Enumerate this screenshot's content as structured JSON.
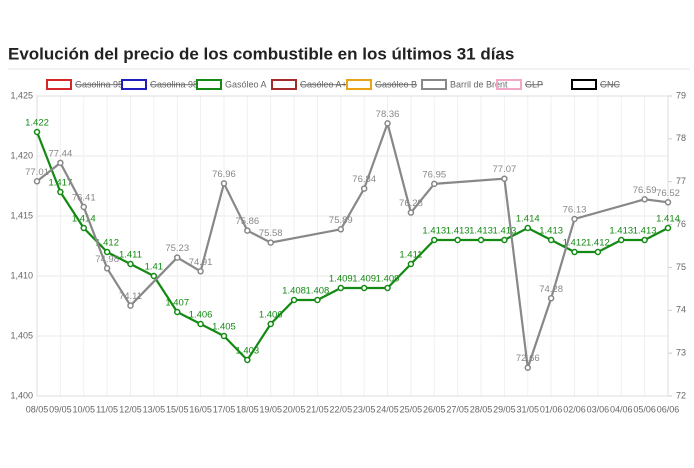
{
  "chart_data": {
    "type": "line",
    "title": "Evolución del precio de los combustible en los últimos 31 días",
    "categories": [
      "08/05",
      "09/05",
      "10/05",
      "11/05",
      "12/05",
      "13/05",
      "15/05",
      "16/05",
      "17/05",
      "18/05",
      "19/05",
      "20/05",
      "21/05",
      "22/05",
      "23/05",
      "24/05",
      "25/05",
      "26/05",
      "27/05",
      "28/05",
      "29/05",
      "31/05",
      "01/06",
      "02/06",
      "03/06",
      "04/06",
      "05/06",
      "06/06"
    ],
    "series": [
      {
        "name": "Gasolina 95",
        "color": "#d62728",
        "hidden": true
      },
      {
        "name": "Gasolina 98",
        "color": "#1f1fbf",
        "hidden": true
      },
      {
        "name": "Gasóleo A",
        "color": "#138a13",
        "values": [
          1.422,
          1.417,
          1.414,
          1.412,
          1.411,
          1.41,
          1.407,
          1.406,
          1.405,
          1.403,
          1.406,
          1.408,
          1.408,
          1.409,
          1.409,
          1.409,
          1.411,
          1.413,
          1.413,
          1.413,
          1.413,
          1.414,
          1.413,
          1.412,
          1.412,
          1.413,
          1.413,
          1.414
        ]
      },
      {
        "name": "Gasóleo A+",
        "color": "#a52a2a",
        "hidden": true
      },
      {
        "name": "Gasóleo B",
        "color": "#e8a317",
        "hidden": true
      },
      {
        "name": "Barril de Brent",
        "color": "#888888",
        "axis": "y2",
        "span_gaps": true,
        "values": [
          77.01,
          77.44,
          76.41,
          74.98,
          74.11,
          null,
          75.23,
          74.91,
          76.96,
          75.86,
          75.58,
          null,
          null,
          75.89,
          76.84,
          78.36,
          76.28,
          76.95,
          null,
          null,
          77.07,
          72.66,
          74.28,
          76.13,
          null,
          null,
          76.59,
          76.52
        ]
      },
      {
        "name": "GLP",
        "color": "#f4a6c6",
        "hidden": true
      },
      {
        "name": "GNC",
        "color": "#000000",
        "hidden": true
      }
    ],
    "ylim": [
      1.4,
      1.425
    ],
    "yticks": [
      {
        "value": 1.4,
        "label": "1,400"
      },
      {
        "value": 1.405,
        "label": "1,405"
      },
      {
        "value": 1.41,
        "label": "1,410"
      },
      {
        "value": 1.415,
        "label": "1,415"
      },
      {
        "value": 1.42,
        "label": "1,420"
      },
      {
        "value": 1.425,
        "label": "1,425"
      }
    ],
    "y2lim": [
      72,
      79
    ],
    "y2ticks": [
      72,
      73,
      74,
      75,
      76,
      77,
      78,
      79
    ],
    "grid": true,
    "legend": "top"
  }
}
